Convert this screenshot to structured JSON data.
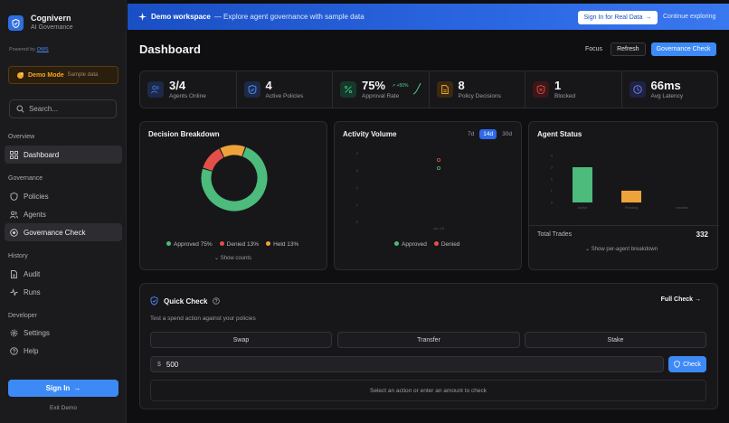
{
  "sidebar": {
    "brand_name": "Cognivern",
    "brand_sub": "AI Governance",
    "powered_prefix": "Powered by",
    "powered_link": "OWS",
    "demo_label": "Demo Mode",
    "demo_sub": "Sample data",
    "search_placeholder": "Search...",
    "sections": {
      "overview": "Overview",
      "governance": "Governance",
      "history": "History",
      "developer": "Developer"
    },
    "items": {
      "dashboard": "Dashboard",
      "policies": "Policies",
      "agents": "Agents",
      "governance_check": "Governance Check",
      "audit": "Audit",
      "runs": "Runs",
      "settings": "Settings",
      "help": "Help"
    },
    "sign_in": "Sign In",
    "exit_demo": "Exit Demo"
  },
  "banner": {
    "title": "Demo workspace",
    "text": "— Explore agent governance with sample data",
    "button": "Sign In for Real Data",
    "link": "Continue exploring"
  },
  "header": {
    "title": "Dashboard",
    "focus": "Focus",
    "refresh": "Refresh",
    "governance_check": "Governance Check"
  },
  "stats": [
    {
      "value": "3/4",
      "label": "Agents Online",
      "icon": "users-icon",
      "color": "#3d6fd8",
      "bg": "#1c2a48"
    },
    {
      "value": "4",
      "label": "Active Policies",
      "icon": "shield-icon",
      "color": "#4f8cf7",
      "bg": "#1c2a48"
    },
    {
      "value": "75%",
      "label": "Approval Rate",
      "icon": "percent-icon",
      "color": "#3fbf7f",
      "bg": "#16382a",
      "delta": "↗ +50%"
    },
    {
      "value": "8",
      "label": "Policy Decisions",
      "icon": "document-icon",
      "color": "#f0a030",
      "bg": "#3a2a12"
    },
    {
      "value": "1",
      "label": "Blocked",
      "icon": "shield-x-icon",
      "color": "#e0453c",
      "bg": "#3a1718"
    },
    {
      "value": "66ms",
      "label": "Avg Latency",
      "icon": "clock-icon",
      "color": "#6a7cf0",
      "bg": "#1f2240"
    }
  ],
  "decision_breakdown": {
    "title": "Decision Breakdown",
    "legend": [
      "Approved 75%",
      "Denied 13%",
      "Held 13%"
    ],
    "show_counts": "Show counts",
    "colors": [
      "#4cbb7c",
      "#e2504a",
      "#eea33a"
    ]
  },
  "activity_volume": {
    "title": "Activity Volume",
    "ranges": [
      "7d",
      "14d",
      "30d"
    ],
    "active_range": "14d",
    "x_label": "Jun 15",
    "legend": [
      "Approved",
      "Denied"
    ]
  },
  "agent_status": {
    "title": "Agent Status",
    "categories": [
      "Active",
      "Pending",
      "Inactive"
    ],
    "total_label": "Total Trades",
    "total_value": "332",
    "breakdown_link": "Show per-agent breakdown"
  },
  "chart_data": [
    {
      "type": "pie",
      "title": "Decision Breakdown",
      "categories": [
        "Approved",
        "Denied",
        "Held"
      ],
      "values": [
        75,
        13,
        13
      ]
    },
    {
      "type": "scatter",
      "title": "Activity Volume",
      "x": [
        "Jun 15"
      ],
      "series": [
        {
          "name": "Approved",
          "values": [
            0
          ]
        },
        {
          "name": "Denied",
          "values": [
            0
          ]
        }
      ]
    },
    {
      "type": "bar",
      "title": "Agent Status",
      "categories": [
        "Active",
        "Pending",
        "Inactive"
      ],
      "values": [
        3,
        1,
        0
      ],
      "ylim": [
        0,
        4
      ]
    }
  ],
  "quick_check": {
    "title": "Quick Check",
    "full_check": "Full Check →",
    "description": "Test a spend action against your policies",
    "actions": [
      "Swap",
      "Transfer",
      "Stake"
    ],
    "currency": "$",
    "amount": "500",
    "check": "Check",
    "result_placeholder": "Select an action or enter an amount to check"
  }
}
